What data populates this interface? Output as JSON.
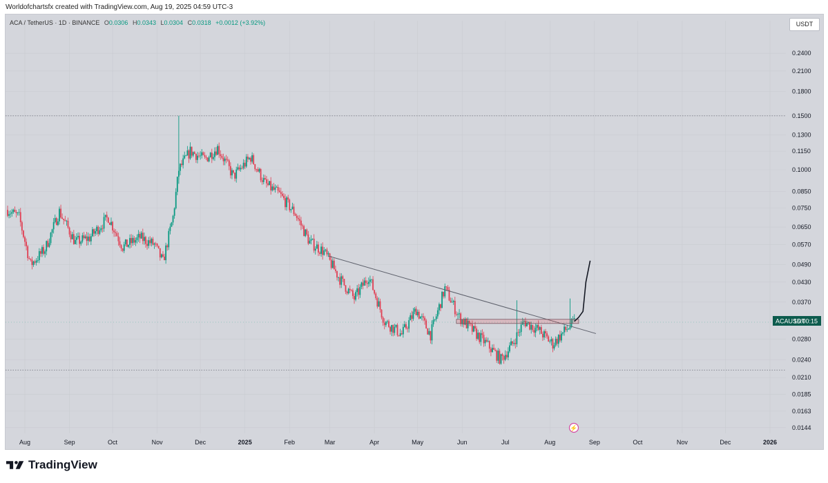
{
  "header": {
    "text": "Worldofchartsfx created with TradingView.com, Aug 19, 2025 04:59 UTC-3"
  },
  "legend": {
    "symbol": "ACA / TetherUS · 1D · BINANCE",
    "o_label": "O",
    "o_value": "0.0306",
    "h_label": "H",
    "h_value": "0.0343",
    "l_label": "L",
    "l_value": "0.0304",
    "c_label": "C",
    "c_value": "0.0318",
    "change": "+0.0012 (+3.92%)"
  },
  "currency_button": "USDT",
  "price_tag": {
    "symbol": "ACAUSDT",
    "countdown": "16:00:15",
    "color": "#0c5b4d"
  },
  "brand": {
    "name": "TradingView"
  },
  "colors": {
    "up": "#089981",
    "down": "#e03e52",
    "background": "#d4d6dc",
    "trendline": "#5d606b"
  },
  "chart_data": {
    "type": "candlestick",
    "y_scale": "log",
    "ylim": [
      0.0138,
      0.285
    ],
    "y_ticks": [
      "0.2400",
      "0.2100",
      "0.1800",
      "0.1500",
      "0.1300",
      "0.1150",
      "0.1000",
      "0.0850",
      "0.0750",
      "0.0650",
      "0.0570",
      "0.0490",
      "0.0430",
      "0.0370",
      "0.0280",
      "0.0240",
      "0.0210",
      "0.0185",
      "0.0163",
      "0.0144"
    ],
    "x_ticks": [
      "Aug",
      "Sep",
      "Oct",
      "Nov",
      "Dec",
      "2025",
      "Feb",
      "Mar",
      "Apr",
      "May",
      "Jun",
      "Jul",
      "Aug",
      "Sep",
      "Oct",
      "Nov",
      "Dec",
      "2026"
    ],
    "x_tick_dates": [
      "2024-08-01",
      "2024-09-01",
      "2024-10-01",
      "2024-11-01",
      "2024-12-01",
      "2025-01-01",
      "2025-02-01",
      "2025-03-01",
      "2025-04-01",
      "2025-05-01",
      "2025-06-01",
      "2025-07-01",
      "2025-08-01",
      "2025-09-01",
      "2025-10-01",
      "2025-11-01",
      "2025-12-01",
      "2026-01-01"
    ],
    "closes": [
      {
        "date": "2024-07-20",
        "close": 0.074
      },
      {
        "date": "2024-07-28",
        "close": 0.07
      },
      {
        "date": "2024-08-05",
        "close": 0.049
      },
      {
        "date": "2024-08-15",
        "close": 0.055
      },
      {
        "date": "2024-08-25",
        "close": 0.073
      },
      {
        "date": "2024-09-05",
        "close": 0.058
      },
      {
        "date": "2024-09-15",
        "close": 0.06
      },
      {
        "date": "2024-09-28",
        "close": 0.07
      },
      {
        "date": "2024-10-08",
        "close": 0.056
      },
      {
        "date": "2024-10-20",
        "close": 0.06
      },
      {
        "date": "2024-10-30",
        "close": 0.057
      },
      {
        "date": "2024-11-05",
        "close": 0.05
      },
      {
        "date": "2024-11-12",
        "close": 0.07
      },
      {
        "date": "2024-11-16",
        "close": 0.1
      },
      {
        "date": "2024-11-24",
        "close": 0.115
      },
      {
        "date": "2024-12-04",
        "close": 0.108
      },
      {
        "date": "2024-12-13",
        "close": 0.118
      },
      {
        "date": "2024-12-24",
        "close": 0.095
      },
      {
        "date": "2025-01-05",
        "close": 0.11
      },
      {
        "date": "2025-01-15",
        "close": 0.09
      },
      {
        "date": "2025-01-25",
        "close": 0.083
      },
      {
        "date": "2025-02-05",
        "close": 0.072
      },
      {
        "date": "2025-02-15",
        "close": 0.058
      },
      {
        "date": "2025-02-25",
        "close": 0.054
      },
      {
        "date": "2025-03-08",
        "close": 0.044
      },
      {
        "date": "2025-03-18",
        "close": 0.038
      },
      {
        "date": "2025-03-28",
        "close": 0.045
      },
      {
        "date": "2025-04-08",
        "close": 0.032
      },
      {
        "date": "2025-04-20",
        "close": 0.029
      },
      {
        "date": "2025-04-30",
        "close": 0.035
      },
      {
        "date": "2025-05-10",
        "close": 0.029
      },
      {
        "date": "2025-05-20",
        "close": 0.041
      },
      {
        "date": "2025-05-30",
        "close": 0.033
      },
      {
        "date": "2025-06-08",
        "close": 0.03
      },
      {
        "date": "2025-06-18",
        "close": 0.027
      },
      {
        "date": "2025-06-28",
        "close": 0.024
      },
      {
        "date": "2025-07-06",
        "close": 0.027
      },
      {
        "date": "2025-07-14",
        "close": 0.032
      },
      {
        "date": "2025-07-24",
        "close": 0.03
      },
      {
        "date": "2025-08-03",
        "close": 0.027
      },
      {
        "date": "2025-08-12",
        "close": 0.03
      },
      {
        "date": "2025-08-18",
        "close": 0.0318
      }
    ],
    "marked_levels": [
      0.15,
      0.0222
    ],
    "trendline": {
      "from": {
        "date": "2025-02-28",
        "price": 0.0523
      },
      "to": {
        "date": "2025-09-02",
        "price": 0.0292
      }
    },
    "zone": {
      "from_date": "2025-05-28",
      "to_date": "2025-08-21",
      "low": 0.0315,
      "high": 0.0325
    },
    "projection": [
      {
        "date": "2025-08-18",
        "price": 0.032
      },
      {
        "date": "2025-08-21",
        "price": 0.033
      },
      {
        "date": "2025-08-24",
        "price": 0.0345
      },
      {
        "date": "2025-08-26",
        "price": 0.043
      },
      {
        "date": "2025-08-29",
        "price": 0.0505
      }
    ],
    "last_price": 0.0318,
    "last_price_label": "ACAUSDT"
  }
}
